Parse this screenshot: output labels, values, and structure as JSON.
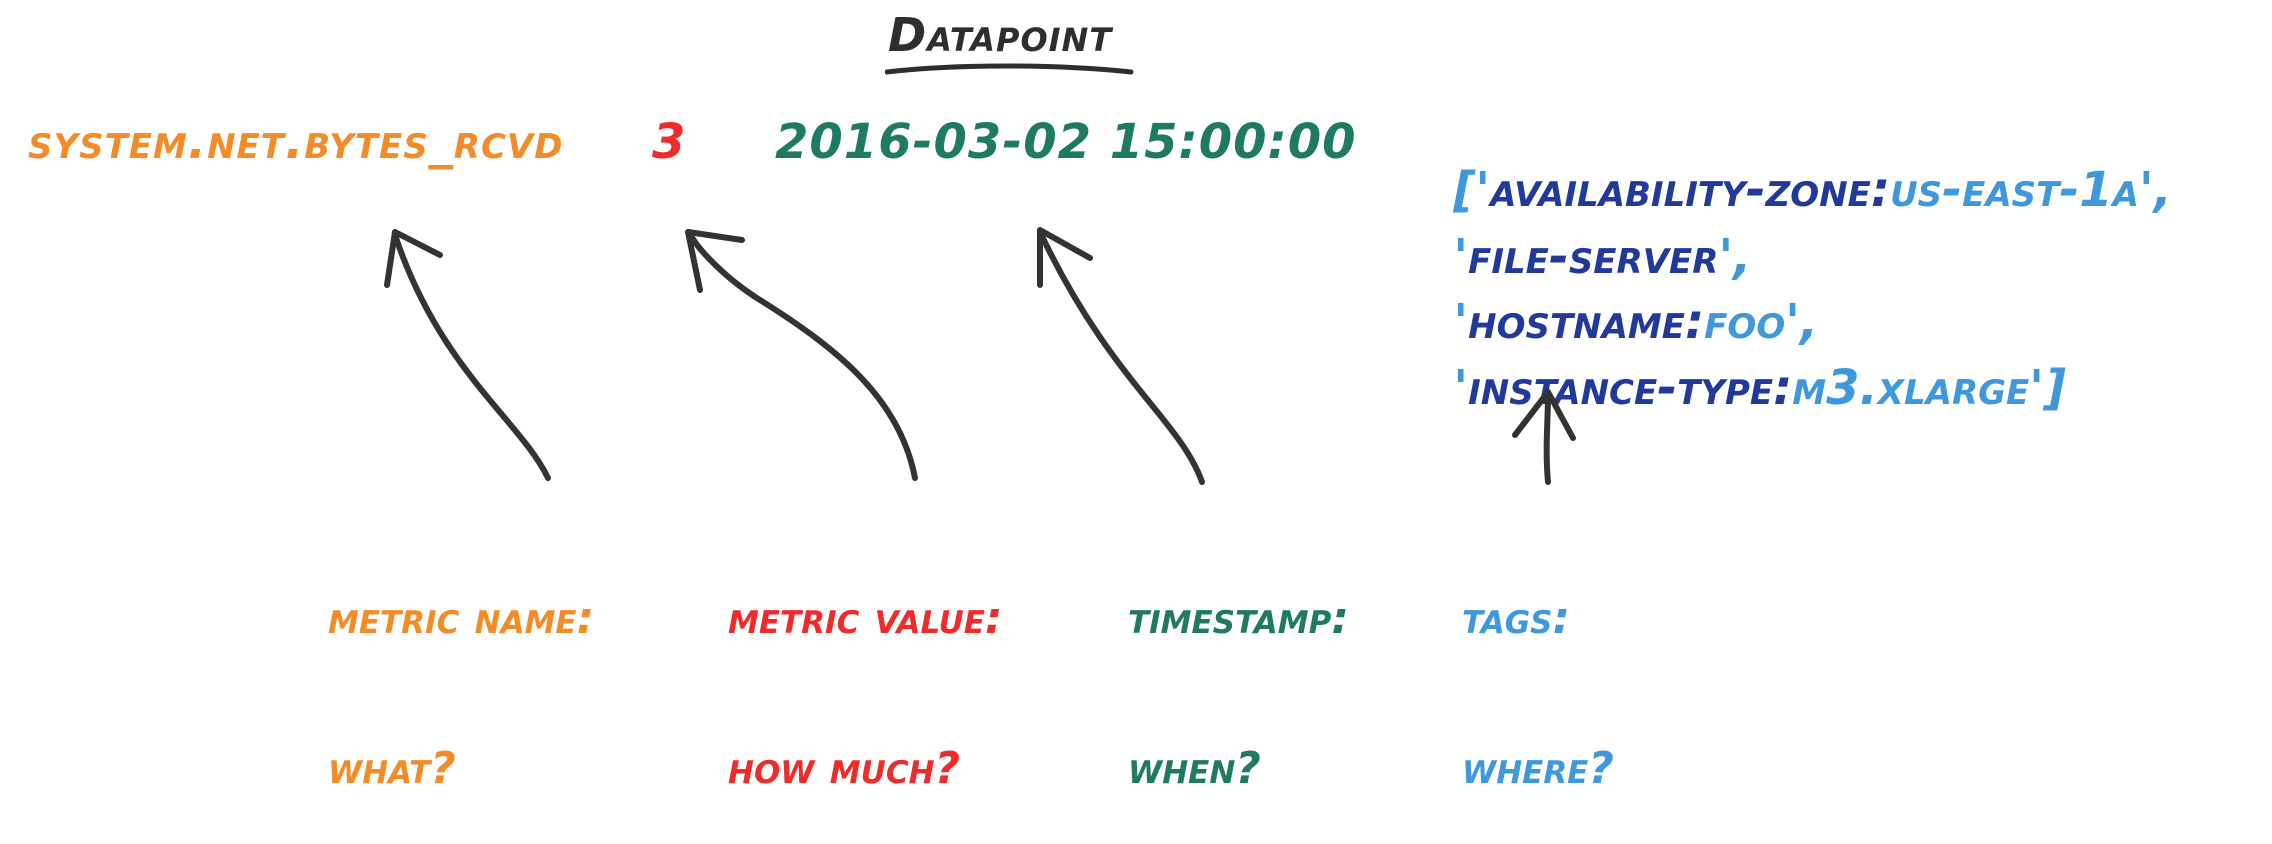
{
  "title": "Datapoint",
  "colors": {
    "title": "#2e2e2e",
    "metric_name": "#f28c28",
    "metric_value": "#ef2b2b",
    "timestamp": "#1f7a63",
    "tag_key": "#213a9a",
    "tag_value": "#3f98dc",
    "arrow": "#333333"
  },
  "datapoint": {
    "metric_name": "system.net.bytes_rcvd",
    "metric_value": "3",
    "timestamp": "2016-03-02 15:00:00",
    "tags": [
      {
        "open": "['",
        "key": "availability-zone:",
        "value": "us-east-1a",
        "close": "',"
      },
      {
        "open": "'",
        "key": "file-server",
        "value": "",
        "close": "',"
      },
      {
        "open": "'",
        "key": "hostname:",
        "value": "foo",
        "close": "',"
      },
      {
        "open": "'",
        "key": "instance-type:",
        "value": "m3.xlarge",
        "close": "']"
      }
    ]
  },
  "captions": {
    "metric_name": {
      "line1": "metric name:",
      "line2": "what?"
    },
    "metric_value": {
      "line1": "metric value:",
      "line2": "how much?"
    },
    "timestamp": {
      "line1": "timestamp:",
      "line2": "when?"
    },
    "tags": {
      "line1": "tags:",
      "line2": "where?"
    }
  }
}
